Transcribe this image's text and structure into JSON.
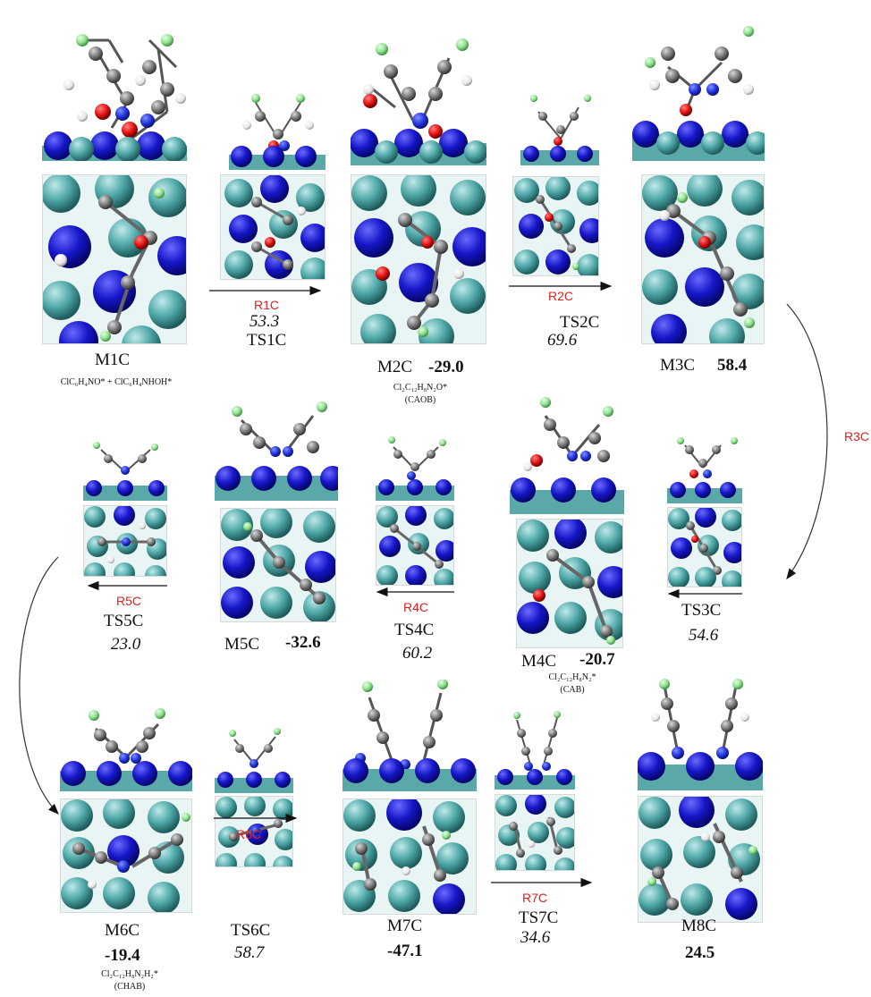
{
  "states": {
    "M1C": {
      "label": "M1C",
      "formula": "ClC₆H₄NO* + ClC₆H₄NHOH*"
    },
    "TS1C": {
      "label": "TS1C",
      "energy": "53.3"
    },
    "M2C": {
      "label": "M2C",
      "energy": "-29.0",
      "formula": "Cl₂C₁₂H₈N₂O*",
      "abbr": "(CAOB)"
    },
    "TS2C": {
      "label": "TS2C",
      "energy": "69.6"
    },
    "M3C": {
      "label": "M3C",
      "energy": "58.4"
    },
    "TS3C": {
      "label": "TS3C",
      "energy": "54.6"
    },
    "M4C": {
      "label": "M4C",
      "energy": "-20.7",
      "formula": "Cl₂C₁₂H₈N₂*",
      "abbr": "(CAB)"
    },
    "TS4C": {
      "label": "TS4C",
      "energy": "60.2"
    },
    "M5C": {
      "label": "M5C",
      "energy": "-32.6"
    },
    "TS5C": {
      "label": "TS5C",
      "energy": "23.0"
    },
    "M6C": {
      "label": "M6C",
      "energy": "-19.4",
      "formula": "Cl₂C₁₂H₈N₂H₂*",
      "abbr": "(CHAB)"
    },
    "TS6C": {
      "label": "TS6C",
      "energy": "58.7"
    },
    "M7C": {
      "label": "M7C",
      "energy": "-47.1"
    },
    "TS7C": {
      "label": "TS7C",
      "energy": "34.6"
    },
    "M8C": {
      "label": "M8C",
      "energy": "24.5"
    }
  },
  "reactions": {
    "R1C": "R1C",
    "R2C": "R2C",
    "R3C": "R3C",
    "R4C": "R4C",
    "R5C": "R5C",
    "R6C": "R6C",
    "R7C": "R7C"
  },
  "colors": {
    "metal_blue": "#1f1fcc",
    "metal_teal": "#4fa7a7",
    "carbon": "#7a7a7a",
    "hydrogen": "#f2f2f2",
    "oxygen": "#e01010",
    "nitrogen": "#2233dd",
    "chlorine": "#8fe08f",
    "reaction_label": "#e02020"
  }
}
